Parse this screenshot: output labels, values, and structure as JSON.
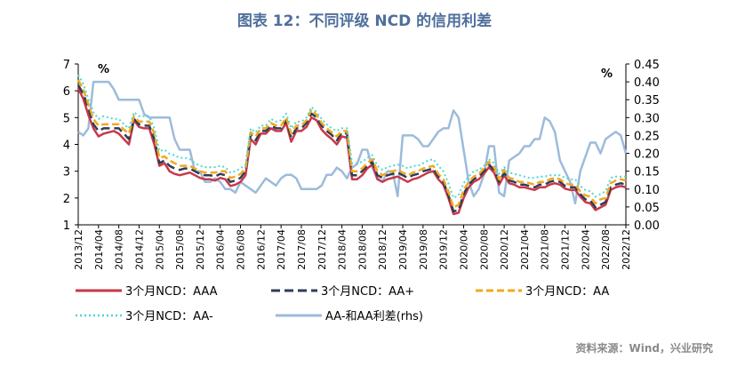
{
  "title": "图表 12：不同评级 NCD 的信用利差",
  "source": "资料来源：Wind，兴业研究",
  "chart_data": {
    "type": "line",
    "title": "图表 12：不同评级 NCD 的信用利差",
    "left_unit": "%",
    "right_unit": "%",
    "ylim_left": [
      1,
      7
    ],
    "yticks_left": [
      "1",
      "2",
      "3",
      "4",
      "5",
      "6",
      "7"
    ],
    "ylim_right": [
      0,
      0.45
    ],
    "yticks_right": [
      "0.00",
      "0.05",
      "0.10",
      "0.15",
      "0.20",
      "0.25",
      "0.30",
      "0.35",
      "0.40",
      "0.45"
    ],
    "xticks": [
      "2013/12",
      "2014/04",
      "2014/08",
      "2014/12",
      "2015/04",
      "2015/08",
      "2015/12",
      "2016/04",
      "2016/08",
      "2016/12",
      "2017/04",
      "2017/08",
      "2017/12",
      "2018/04",
      "2018/08",
      "2018/12",
      "2019/04",
      "2019/08",
      "2019/12",
      "2020/04",
      "2020/08",
      "2020/12",
      "2021/04",
      "2021/08",
      "2021/12",
      "2022/04",
      "2022/08",
      "2022/12"
    ],
    "x_start": "2013/12",
    "series": [
      {
        "name": "3个月NCD：AAA",
        "axis": "left",
        "color": "#c8384a",
        "dash": "",
        "width": 2.5,
        "values": [
          6.1,
          5.7,
          5.1,
          4.6,
          4.3,
          4.4,
          4.45,
          4.5,
          4.4,
          4.2,
          4.0,
          4.9,
          4.65,
          4.6,
          4.6,
          4.0,
          3.2,
          3.3,
          3.0,
          2.9,
          2.85,
          2.9,
          2.95,
          2.85,
          2.75,
          2.7,
          2.7,
          2.65,
          2.75,
          2.7,
          2.45,
          2.5,
          2.6,
          2.85,
          4.2,
          4.0,
          4.4,
          4.4,
          4.6,
          4.5,
          4.5,
          4.8,
          4.1,
          4.5,
          4.5,
          4.65,
          5.0,
          4.9,
          4.55,
          4.35,
          4.2,
          4.0,
          4.3,
          4.25,
          2.7,
          2.7,
          2.85,
          3.1,
          3.25,
          2.7,
          2.6,
          2.7,
          2.75,
          2.8,
          2.7,
          2.6,
          2.7,
          2.75,
          2.85,
          2.95,
          3.0,
          2.7,
          2.5,
          2.0,
          1.4,
          1.45,
          2.0,
          2.4,
          2.6,
          2.7,
          2.9,
          3.15,
          2.95,
          2.5,
          2.85,
          2.55,
          2.5,
          2.4,
          2.4,
          2.35,
          2.3,
          2.4,
          2.4,
          2.5,
          2.55,
          2.5,
          2.35,
          2.3,
          2.3,
          2.05,
          1.85,
          1.8,
          1.55,
          1.65,
          1.75,
          2.3,
          2.4,
          2.45,
          2.4
        ]
      },
      {
        "name": "3个月NCD：AA+",
        "axis": "left",
        "color": "#2d3d57",
        "dash": "10,5",
        "width": 2.5,
        "values": [
          6.2,
          5.9,
          5.35,
          4.75,
          4.5,
          4.6,
          4.6,
          4.6,
          4.6,
          4.4,
          4.2,
          4.95,
          4.75,
          4.7,
          4.7,
          4.2,
          3.3,
          3.4,
          3.2,
          3.1,
          3.05,
          3.1,
          3.1,
          3.0,
          2.9,
          2.85,
          2.85,
          2.8,
          2.9,
          2.85,
          2.6,
          2.65,
          2.75,
          3.0,
          4.35,
          4.15,
          4.5,
          4.5,
          4.7,
          4.6,
          4.6,
          4.9,
          4.25,
          4.6,
          4.6,
          4.8,
          5.15,
          5.0,
          4.7,
          4.5,
          4.35,
          4.15,
          4.45,
          4.4,
          2.85,
          2.85,
          3.0,
          3.2,
          3.35,
          2.85,
          2.75,
          2.85,
          2.9,
          2.95,
          2.85,
          2.75,
          2.85,
          2.9,
          3.0,
          3.05,
          3.1,
          2.8,
          2.6,
          2.1,
          1.5,
          1.55,
          2.15,
          2.5,
          2.7,
          2.8,
          3.0,
          3.25,
          3.05,
          2.6,
          2.95,
          2.65,
          2.6,
          2.5,
          2.5,
          2.45,
          2.4,
          2.5,
          2.5,
          2.6,
          2.65,
          2.6,
          2.45,
          2.4,
          2.4,
          2.15,
          1.95,
          1.9,
          1.65,
          1.75,
          1.85,
          2.4,
          2.5,
          2.55,
          2.5
        ]
      },
      {
        "name": "3个月NCD：AA",
        "axis": "left",
        "color": "#f2a81e",
        "dash": "8,4",
        "width": 2.5,
        "values": [
          6.4,
          6.05,
          5.5,
          4.95,
          4.7,
          4.75,
          4.75,
          4.75,
          4.75,
          4.55,
          4.4,
          5.05,
          4.85,
          4.85,
          4.85,
          4.4,
          3.5,
          3.55,
          3.4,
          3.3,
          3.2,
          3.2,
          3.2,
          3.1,
          3.0,
          2.95,
          2.95,
          2.95,
          3.0,
          3.0,
          2.75,
          2.8,
          2.9,
          3.1,
          4.45,
          4.3,
          4.6,
          4.6,
          4.8,
          4.7,
          4.7,
          5.0,
          4.4,
          4.7,
          4.7,
          4.9,
          5.3,
          5.1,
          4.8,
          4.6,
          4.45,
          4.3,
          4.5,
          4.5,
          3.0,
          3.0,
          3.1,
          3.3,
          3.45,
          3.0,
          2.85,
          2.95,
          3.0,
          3.05,
          2.95,
          2.85,
          2.95,
          3.0,
          3.1,
          3.15,
          3.2,
          2.9,
          2.7,
          2.25,
          1.65,
          1.75,
          2.3,
          2.6,
          2.8,
          2.9,
          3.1,
          3.35,
          3.15,
          2.7,
          3.05,
          2.75,
          2.7,
          2.6,
          2.6,
          2.55,
          2.5,
          2.6,
          2.6,
          2.7,
          2.75,
          2.7,
          2.55,
          2.5,
          2.5,
          2.25,
          2.1,
          2.05,
          1.8,
          1.95,
          2.0,
          2.55,
          2.65,
          2.7,
          2.65
        ]
      },
      {
        "name": "3个月NCD：AA-",
        "axis": "left",
        "color": "#4fd6d6",
        "dash": "2,3",
        "width": 2,
        "values": [
          6.6,
          6.25,
          5.7,
          5.2,
          4.95,
          5.05,
          5.0,
          4.95,
          4.95,
          4.75,
          4.6,
          5.2,
          5.05,
          5.05,
          5.05,
          4.6,
          3.75,
          3.8,
          3.65,
          3.6,
          3.5,
          3.5,
          3.45,
          3.3,
          3.2,
          3.15,
          3.15,
          3.15,
          3.2,
          3.15,
          2.95,
          3.0,
          3.1,
          3.25,
          4.6,
          4.45,
          4.7,
          4.7,
          4.95,
          4.85,
          4.9,
          5.15,
          4.6,
          4.85,
          4.85,
          5.0,
          5.4,
          5.2,
          4.95,
          4.75,
          4.6,
          4.5,
          4.6,
          4.6,
          3.3,
          3.3,
          3.35,
          3.5,
          3.6,
          3.2,
          3.05,
          3.15,
          3.2,
          3.25,
          3.2,
          3.1,
          3.2,
          3.2,
          3.3,
          3.4,
          3.45,
          3.2,
          3.0,
          2.55,
          2.0,
          2.1,
          2.55,
          2.8,
          3.0,
          3.05,
          3.2,
          3.45,
          3.3,
          2.9,
          3.15,
          2.95,
          2.9,
          2.85,
          2.8,
          2.75,
          2.75,
          2.8,
          2.8,
          2.85,
          2.85,
          2.85,
          2.75,
          2.7,
          2.7,
          2.45,
          2.3,
          2.25,
          2.05,
          2.15,
          2.25,
          2.75,
          2.8,
          2.8,
          2.8
        ]
      },
      {
        "name": "AA-和AA利差(rhs)",
        "axis": "right",
        "color": "#9dbbdb",
        "dash": "",
        "width": 2.5,
        "values": [
          0.26,
          0.25,
          0.27,
          0.4,
          0.4,
          0.4,
          0.4,
          0.38,
          0.35,
          0.35,
          0.35,
          0.35,
          0.35,
          0.31,
          0.3,
          0.3,
          0.3,
          0.3,
          0.3,
          0.24,
          0.21,
          0.21,
          0.21,
          0.15,
          0.15,
          0.12,
          0.12,
          0.13,
          0.12,
          0.1,
          0.1,
          0.09,
          0.12,
          0.11,
          0.1,
          0.09,
          0.11,
          0.13,
          0.12,
          0.11,
          0.13,
          0.14,
          0.14,
          0.13,
          0.1,
          0.1,
          0.1,
          0.1,
          0.11,
          0.14,
          0.14,
          0.16,
          0.15,
          0.13,
          0.16,
          0.17,
          0.21,
          0.21,
          0.16,
          0.13,
          0.12,
          0.15,
          0.15,
          0.08,
          0.25,
          0.25,
          0.25,
          0.24,
          0.22,
          0.22,
          0.24,
          0.26,
          0.27,
          0.27,
          0.32,
          0.3,
          0.21,
          0.12,
          0.08,
          0.1,
          0.14,
          0.22,
          0.22,
          0.09,
          0.08,
          0.18,
          0.19,
          0.2,
          0.22,
          0.22,
          0.24,
          0.24,
          0.3,
          0.29,
          0.26,
          0.18,
          0.15,
          0.12,
          0.06,
          0.15,
          0.19,
          0.23,
          0.23,
          0.2,
          0.24,
          0.25,
          0.26,
          0.25,
          0.2
        ]
      }
    ],
    "grid": false,
    "legend_placement": "bottom"
  }
}
